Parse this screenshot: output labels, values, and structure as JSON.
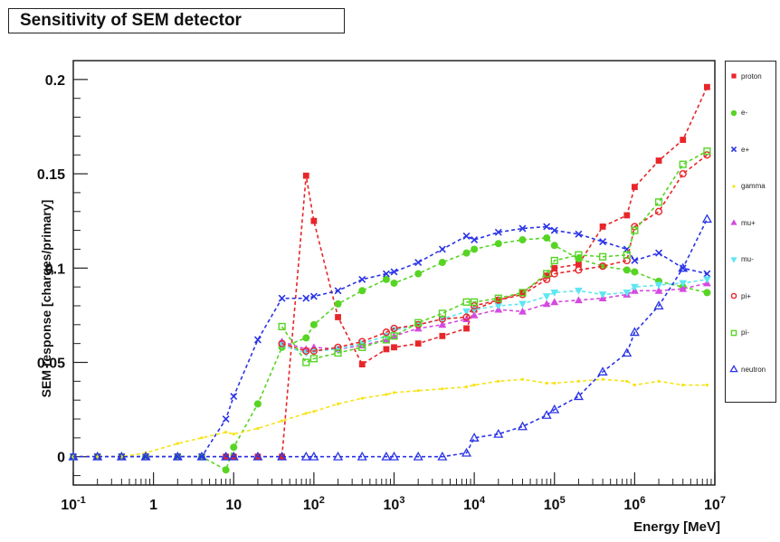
{
  "chart_data": {
    "type": "line",
    "title": "Sensitivity of SEM detector",
    "xlabel": "Energy [MeV]",
    "ylabel": "SEM response [charges/primary]",
    "xscale": "log",
    "xlim": [
      0.1,
      10000000
    ],
    "ylim": [
      -0.015,
      0.21
    ],
    "x_ticks": [
      {
        "value": 0.1,
        "label": "10",
        "sup": "-1"
      },
      {
        "value": 1,
        "label": "1",
        "sup": ""
      },
      {
        "value": 10,
        "label": "10",
        "sup": ""
      },
      {
        "value": 100,
        "label": "10",
        "sup": "2"
      },
      {
        "value": 1000,
        "label": "10",
        "sup": "3"
      },
      {
        "value": 10000,
        "label": "10",
        "sup": "4"
      },
      {
        "value": 100000,
        "label": "10",
        "sup": "5"
      },
      {
        "value": 1000000,
        "label": "10",
        "sup": "6"
      },
      {
        "value": 10000000,
        "label": "10",
        "sup": "7"
      }
    ],
    "y_ticks": [
      {
        "value": 0,
        "label": "0"
      },
      {
        "value": 0.05,
        "label": "0.05"
      },
      {
        "value": 0.1,
        "label": "0.1"
      },
      {
        "value": 0.15,
        "label": "0.15"
      },
      {
        "value": 0.2,
        "label": "0.2"
      }
    ],
    "legend_position": "right",
    "series": [
      {
        "name": "proton",
        "color": "#e8262a",
        "marker": "square-filled",
        "x": [
          0.1,
          0.2,
          0.4,
          0.8,
          2,
          4,
          8,
          10,
          20,
          40,
          80,
          100,
          200,
          400,
          800,
          1000,
          2000,
          4000,
          8000,
          10000,
          20000,
          40000,
          80000,
          100000,
          200000,
          400000,
          800000,
          1000000,
          2000000,
          4000000,
          8000000
        ],
        "y": [
          0,
          0,
          0,
          0,
          0,
          0,
          0,
          0,
          0,
          0,
          0.149,
          0.125,
          0.074,
          0.049,
          0.057,
          0.058,
          0.06,
          0.064,
          0.068,
          0.078,
          0.083,
          0.087,
          0.096,
          0.1,
          0.102,
          0.122,
          0.128,
          0.143,
          0.157,
          0.168,
          0.196
        ]
      },
      {
        "name": "e-",
        "color": "#57d424",
        "marker": "circle-filled",
        "x": [
          0.1,
          0.2,
          0.4,
          0.8,
          2,
          4,
          8,
          10,
          20,
          40,
          80,
          100,
          200,
          400,
          800,
          1000,
          2000,
          4000,
          8000,
          10000,
          20000,
          40000,
          80000,
          100000,
          200000,
          400000,
          800000,
          1000000,
          2000000,
          4000000,
          8000000
        ],
        "y": [
          0,
          0,
          0,
          0,
          0,
          0,
          -0.007,
          0.005,
          0.028,
          0.058,
          0.063,
          0.07,
          0.081,
          0.088,
          0.094,
          0.092,
          0.097,
          0.103,
          0.108,
          0.11,
          0.113,
          0.115,
          0.116,
          0.112,
          0.105,
          0.101,
          0.099,
          0.098,
          0.093,
          0.09,
          0.087
        ]
      },
      {
        "name": "e+",
        "color": "#2a33e6",
        "marker": "cross",
        "x": [
          0.1,
          0.2,
          0.4,
          0.8,
          2,
          4,
          8,
          10,
          20,
          40,
          80,
          100,
          200,
          400,
          800,
          1000,
          2000,
          4000,
          8000,
          10000,
          20000,
          40000,
          80000,
          100000,
          200000,
          400000,
          800000,
          1000000,
          2000000,
          4000000,
          8000000
        ],
        "y": [
          0,
          0,
          0,
          0,
          0,
          0,
          0.02,
          0.032,
          0.062,
          0.084,
          0.084,
          0.085,
          0.088,
          0.094,
          0.097,
          0.098,
          0.103,
          0.11,
          0.117,
          0.115,
          0.119,
          0.121,
          0.122,
          0.12,
          0.118,
          0.114,
          0.11,
          0.104,
          0.108,
          0.1,
          0.097
        ]
      },
      {
        "name": "gamma",
        "color": "#f7e316",
        "marker": "dot",
        "x": [
          0.1,
          0.2,
          0.4,
          0.8,
          2,
          4,
          8,
          10,
          20,
          40,
          80,
          100,
          200,
          400,
          800,
          1000,
          2000,
          4000,
          8000,
          10000,
          20000,
          40000,
          80000,
          100000,
          200000,
          400000,
          800000,
          1000000,
          2000000,
          4000000,
          8000000
        ],
        "y": [
          0,
          0,
          0,
          0.002,
          0.007,
          0.01,
          0.013,
          0.012,
          0.015,
          0.019,
          0.023,
          0.024,
          0.028,
          0.031,
          0.033,
          0.034,
          0.035,
          0.036,
          0.037,
          0.038,
          0.04,
          0.041,
          0.039,
          0.039,
          0.04,
          0.041,
          0.04,
          0.038,
          0.04,
          0.038,
          0.038
        ]
      },
      {
        "name": "mu+",
        "color": "#d44ae0",
        "marker": "triangle-filled",
        "x": [
          40,
          80,
          100,
          200,
          400,
          800,
          1000,
          2000,
          4000,
          8000,
          10000,
          20000,
          40000,
          80000,
          100000,
          200000,
          400000,
          800000,
          1000000,
          2000000,
          4000000,
          8000000
        ],
        "y": [
          0.061,
          0.057,
          0.058,
          0.057,
          0.059,
          0.062,
          0.064,
          0.068,
          0.07,
          0.073,
          0.075,
          0.078,
          0.077,
          0.081,
          0.082,
          0.083,
          0.084,
          0.086,
          0.088,
          0.088,
          0.089,
          0.092
        ]
      },
      {
        "name": "mu-",
        "color": "#5fe6f2",
        "marker": "triangle-down-filled",
        "x": [
          40,
          80,
          100,
          200,
          400,
          800,
          1000,
          2000,
          4000,
          8000,
          10000,
          20000,
          40000,
          80000,
          100000,
          200000,
          400000,
          800000,
          1000000,
          2000000,
          4000000,
          8000000
        ],
        "y": [
          0.059,
          0.055,
          0.056,
          0.057,
          0.06,
          0.064,
          0.067,
          0.07,
          0.073,
          0.077,
          0.078,
          0.08,
          0.081,
          0.085,
          0.087,
          0.088,
          0.086,
          0.087,
          0.09,
          0.091,
          0.092,
          0.094
        ]
      },
      {
        "name": "pi+",
        "color": "#e8262a",
        "marker": "circle-open",
        "x": [
          40,
          80,
          100,
          200,
          400,
          800,
          1000,
          2000,
          4000,
          8000,
          10000,
          20000,
          40000,
          80000,
          100000,
          200000,
          400000,
          800000,
          1000000,
          2000000,
          4000000,
          8000000
        ],
        "y": [
          0.06,
          0.056,
          0.056,
          0.058,
          0.061,
          0.066,
          0.068,
          0.07,
          0.073,
          0.074,
          0.08,
          0.083,
          0.086,
          0.094,
          0.097,
          0.099,
          0.101,
          0.104,
          0.122,
          0.13,
          0.15,
          0.16
        ]
      },
      {
        "name": "pi-",
        "color": "#57d424",
        "marker": "square-open",
        "x": [
          40,
          80,
          100,
          200,
          400,
          800,
          1000,
          2000,
          4000,
          8000,
          10000,
          20000,
          40000,
          80000,
          100000,
          200000,
          400000,
          800000,
          1000000,
          2000000,
          4000000,
          8000000
        ],
        "y": [
          0.069,
          0.05,
          0.052,
          0.055,
          0.058,
          0.062,
          0.064,
          0.071,
          0.076,
          0.082,
          0.082,
          0.084,
          0.087,
          0.097,
          0.104,
          0.107,
          0.106,
          0.107,
          0.12,
          0.135,
          0.155,
          0.162
        ]
      },
      {
        "name": "neutron",
        "color": "#2a33e6",
        "marker": "triangle-open",
        "x": [
          0.1,
          0.2,
          0.4,
          0.8,
          2,
          4,
          8,
          10,
          20,
          40,
          80,
          100,
          200,
          400,
          800,
          1000,
          2000,
          4000,
          8000,
          10000,
          20000,
          40000,
          80000,
          100000,
          200000,
          400000,
          800000,
          1000000,
          2000000,
          4000000,
          8000000
        ],
        "y": [
          0,
          0,
          0,
          0,
          0,
          0,
          0,
          0,
          0,
          0,
          0,
          0,
          0,
          0,
          0,
          0,
          0,
          0,
          0.002,
          0.01,
          0.012,
          0.016,
          0.022,
          0.025,
          0.032,
          0.045,
          0.055,
          0.066,
          0.08,
          0.1,
          0.126
        ]
      }
    ]
  }
}
